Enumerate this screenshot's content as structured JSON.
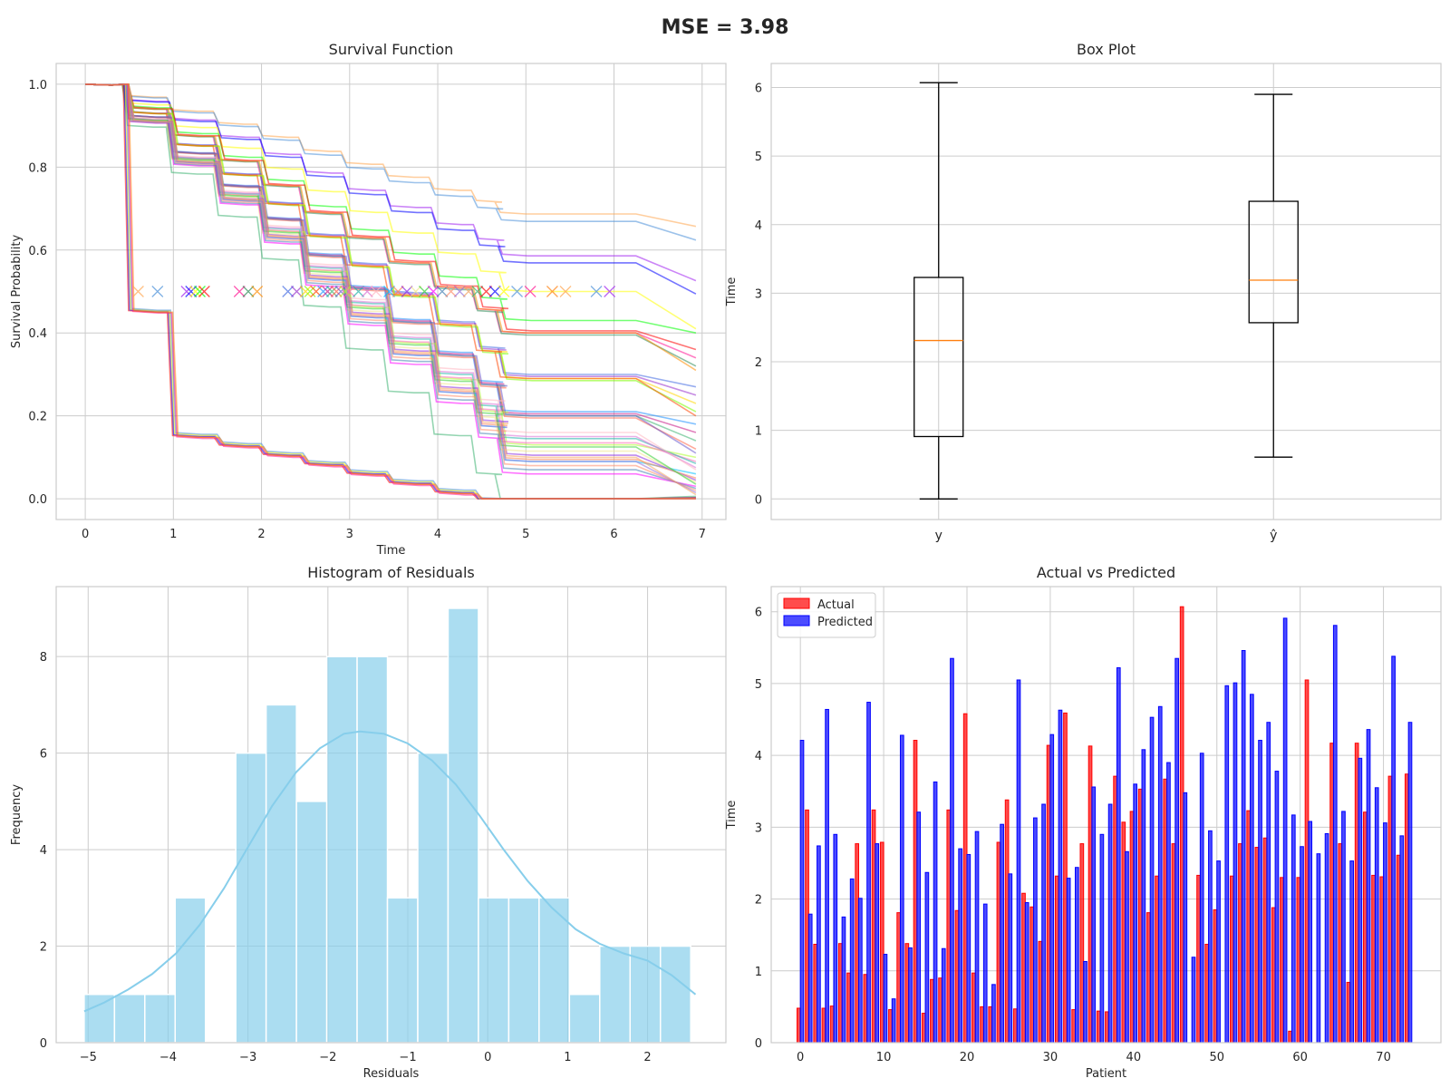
{
  "suptitle": "MSE = 3.98",
  "colors": {
    "grid": "#cccccc",
    "axes_face": "#ffffff",
    "spine": "#cccccc",
    "box_median": "#ff7f0e",
    "hist_bar": "#87ceeb",
    "actual": "#ff0000",
    "predicted": "#0000ff"
  },
  "chart_data": [
    {
      "type": "line",
      "title": "Survival Function",
      "xlabel": "Time",
      "ylabel": "Survival Probability",
      "xlim": [
        -0.33,
        7.27
      ],
      "ylim": [
        -0.05,
        1.05
      ],
      "xticks": [
        0,
        1,
        2,
        3,
        4,
        5,
        6,
        7
      ],
      "yticks": [
        0.0,
        0.2,
        0.4,
        0.6,
        0.8,
        1.0
      ],
      "ytick_labels": [
        "0.0",
        "0.2",
        "0.4",
        "0.6",
        "0.8",
        "1.0"
      ],
      "grid": true,
      "step_times": [
        0.42,
        0.92,
        1.45,
        1.95,
        2.42,
        2.9,
        3.38,
        3.9,
        4.38,
        4.65
      ],
      "curve_end_values": [
        0.657,
        0.624,
        0.526,
        0.494,
        0.41,
        0.4,
        0.36,
        0.34,
        0.32,
        0.31,
        0.27,
        0.25,
        0.23,
        0.21,
        0.2,
        0.18,
        0.16,
        0.14,
        0.12,
        0.11,
        0.1,
        0.09,
        0.085,
        0.075,
        0.07,
        0.06,
        0.05,
        0.045,
        0.04,
        0.035,
        0.03,
        0.025,
        0.02,
        0.015,
        0.01,
        0.006,
        0.003,
        0.002,
        0.001,
        0.0,
        0.0,
        0.0
      ],
      "curve_colors": [
        "#ffa54f",
        "#4a90d9",
        "#a020f0",
        "#0000ff",
        "#ffff00",
        "#00ff00",
        "#ff0000",
        "#ff1493",
        "#2e8b57",
        "#ff8c00",
        "#4169e1",
        "#9932cc",
        "#ffd700",
        "#7cfc00",
        "#ff4500",
        "#1e90ff",
        "#c71585",
        "#3cb371",
        "#ff6347",
        "#6a5acd",
        "#adff2f",
        "#ff69b4",
        "#20b2aa",
        "#da70d6",
        "#ffb6c1",
        "#00bfff",
        "#ff7f50",
        "#8a2be2",
        "#f0e68c",
        "#32cd32",
        "#ff00ff",
        "#4682b4",
        "#ff8c69",
        "#9370db",
        "#f4a460",
        "#3cb371",
        "#ff0000",
        "#0000ff",
        "#ffff00",
        "#4a90d9",
        "#ff1493",
        "#ff7f0e"
      ],
      "marker_y": 0.5,
      "marker_x": [
        0.6,
        0.82,
        1.15,
        1.2,
        1.25,
        1.3,
        1.35,
        1.75,
        1.85,
        1.95,
        2.3,
        2.4,
        2.5,
        2.55,
        2.62,
        2.7,
        2.75,
        2.8,
        2.85,
        2.9,
        2.95,
        3.0,
        3.1,
        3.2,
        3.3,
        3.45,
        3.55,
        3.65,
        3.75,
        3.85,
        3.95,
        4.05,
        4.15,
        4.25,
        4.35,
        4.45,
        4.55,
        4.65,
        4.75,
        4.9,
        5.05,
        5.3,
        5.45,
        5.8,
        5.95
      ]
    },
    {
      "type": "box",
      "title": "Box Plot",
      "xlabel": "",
      "ylabel": "Time",
      "categories": [
        "y",
        "ŷ"
      ],
      "ylim": [
        -0.3,
        6.35
      ],
      "yticks": [
        0,
        1,
        2,
        3,
        4,
        5,
        6
      ],
      "grid": true,
      "boxes": [
        {
          "label": "y",
          "whisker_low": 0.0,
          "q1": 0.91,
          "median": 2.31,
          "q3": 3.23,
          "whisker_high": 6.07
        },
        {
          "label": "ŷ",
          "whisker_low": 0.61,
          "q1": 2.57,
          "median": 3.19,
          "q3": 4.34,
          "whisker_high": 5.9
        }
      ]
    },
    {
      "type": "bar",
      "title": "Histogram of Residuals",
      "xlabel": "Residuals",
      "ylabel": "Frequency",
      "xlim": [
        -5.4,
        2.98
      ],
      "ylim": [
        0,
        9.45
      ],
      "xticks": [
        -5,
        -4,
        -3,
        -2,
        -1,
        0,
        1,
        2
      ],
      "xtick_labels": [
        "−5",
        "−4",
        "−3",
        "−2",
        "−1",
        "0",
        "1",
        "2"
      ],
      "yticks": [
        0,
        2,
        4,
        6,
        8
      ],
      "grid": true,
      "bin_start": -5.05,
      "bin_width": 0.3795,
      "counts": [
        1,
        1,
        1,
        3,
        0,
        6,
        7,
        5,
        8,
        8,
        3,
        6,
        9,
        3,
        3,
        3,
        1,
        2,
        2,
        2
      ],
      "kde": [
        [
          -5.05,
          0.65
        ],
        [
          -4.8,
          0.83
        ],
        [
          -4.5,
          1.1
        ],
        [
          -4.2,
          1.42
        ],
        [
          -3.9,
          1.85
        ],
        [
          -3.6,
          2.45
        ],
        [
          -3.3,
          3.2
        ],
        [
          -3.0,
          4.05
        ],
        [
          -2.7,
          4.9
        ],
        [
          -2.4,
          5.6
        ],
        [
          -2.1,
          6.1
        ],
        [
          -1.8,
          6.4
        ],
        [
          -1.6,
          6.45
        ],
        [
          -1.3,
          6.4
        ],
        [
          -1.0,
          6.2
        ],
        [
          -0.7,
          5.85
        ],
        [
          -0.4,
          5.35
        ],
        [
          -0.1,
          4.7
        ],
        [
          0.2,
          4.0
        ],
        [
          0.5,
          3.35
        ],
        [
          0.8,
          2.8
        ],
        [
          1.1,
          2.35
        ],
        [
          1.4,
          2.05
        ],
        [
          1.7,
          1.85
        ],
        [
          2.0,
          1.7
        ],
        [
          2.3,
          1.4
        ],
        [
          2.6,
          1.0
        ]
      ]
    },
    {
      "type": "bar",
      "title": "Actual vs Predicted",
      "xlabel": "Patient",
      "ylabel": "Time",
      "xlim": [
        -3.5,
        76.9
      ],
      "ylim": [
        0,
        6.35
      ],
      "xticks": [
        0,
        10,
        20,
        30,
        40,
        50,
        60,
        70
      ],
      "yticks": [
        0,
        1,
        2,
        3,
        4,
        5,
        6
      ],
      "grid": true,
      "legend_position": "top-left",
      "series": [
        {
          "name": "Actual",
          "values": [
            0.48,
            3.24,
            1.37,
            0.48,
            0.51,
            1.38,
            0.97,
            2.77,
            0.95,
            3.24,
            2.79,
            0.46,
            1.81,
            1.38,
            4.21,
            0.41,
            0.88,
            0.9,
            3.24,
            1.84,
            4.58,
            0.97,
            0.5,
            0.5,
            2.79,
            3.38,
            0.47,
            2.08,
            1.89,
            1.41,
            4.14,
            2.32,
            4.59,
            0.46,
            2.77,
            4.13,
            0.44,
            0.43,
            3.71,
            3.07,
            3.22,
            3.53,
            1.81,
            2.32,
            3.67,
            2.77,
            6.07,
            0.0,
            2.33,
            1.37,
            1.85,
            0.0,
            2.32,
            2.77,
            3.23,
            2.72,
            2.85,
            1.88,
            2.3,
            0.16,
            2.3,
            5.05,
            0.0,
            0.0,
            4.17,
            2.77,
            0.84,
            4.17,
            3.21,
            2.33,
            2.31,
            3.71,
            2.61,
            3.74
          ]
        },
        {
          "name": "Predicted",
          "values": [
            4.21,
            1.79,
            2.74,
            4.64,
            2.9,
            1.75,
            2.28,
            2.01,
            4.74,
            2.77,
            1.23,
            0.61,
            4.28,
            1.32,
            3.21,
            2.37,
            3.63,
            1.31,
            5.35,
            2.7,
            2.62,
            2.94,
            1.93,
            0.81,
            3.04,
            2.35,
            5.05,
            1.95,
            3.13,
            3.32,
            4.29,
            4.63,
            2.29,
            2.44,
            1.13,
            3.56,
            2.9,
            3.32,
            5.22,
            2.66,
            3.6,
            4.08,
            4.53,
            4.68,
            3.9,
            5.35,
            3.48,
            1.19,
            4.03,
            2.95,
            2.53,
            4.97,
            5.01,
            5.46,
            4.85,
            4.21,
            4.46,
            3.78,
            5.91,
            3.17,
            2.73,
            3.08,
            2.63,
            2.91,
            5.81,
            3.22,
            2.53,
            3.96,
            4.36,
            3.55,
            3.06,
            5.38,
            2.88,
            4.46
          ]
        }
      ]
    }
  ]
}
